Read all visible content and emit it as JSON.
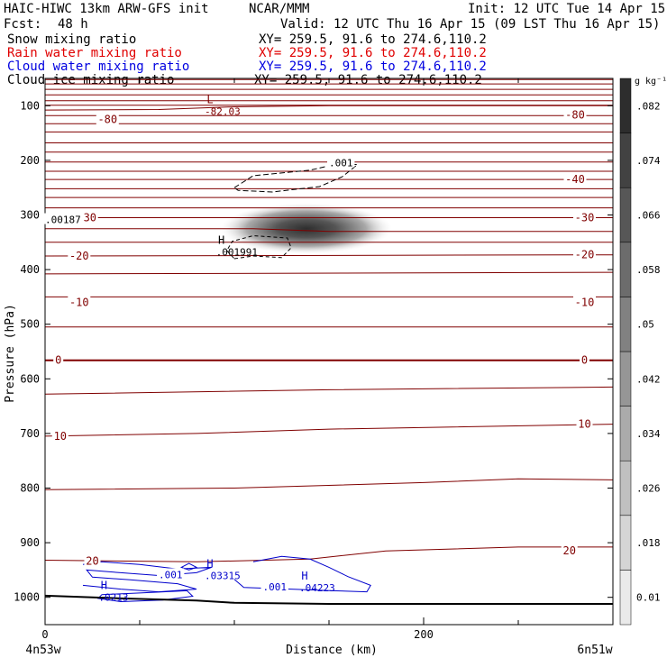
{
  "header": {
    "model": "HAIC-HIWC 13km ARW-GFS init",
    "org": "NCAR/MMM",
    "init": "Init: 12 UTC Tue 14 Apr 15",
    "fcst_label": "Fcst:",
    "fcst_value": "48 h",
    "valid": "Valid: 12 UTC Thu 16 Apr 15 (09 LST Thu 16 Apr 15)"
  },
  "fields": [
    {
      "name": "Snow mixing ratio",
      "xy": "XY= 259.5, 91.6 to 274.6,110.2",
      "color": "#000000"
    },
    {
      "name": "Rain water mixing ratio",
      "xy": "XY= 259.5, 91.6 to 274.6,110.2",
      "color": "#e00000"
    },
    {
      "name": "Cloud water mixing ratio",
      "xy": "XY= 259.5, 91.6 to 274.6,110.2",
      "color": "#0000e0"
    },
    {
      "name": "Cloud ice mixing ratio",
      "xy": "XY= 259.5, 91.6 to 274.6,110.2",
      "color": "#000000"
    }
  ],
  "colors": {
    "temperature": "#800000",
    "cloud_water": "#0000cc",
    "cloud_ice": "#000000",
    "ground": "#000000"
  },
  "chart_data": {
    "type": "cross-section",
    "xlabel": "Distance (km)",
    "ylabel": "Pressure (hPa)",
    "xlim": [
      0,
      300
    ],
    "x_ticks": [
      0,
      200
    ],
    "x_minor_ticks": [
      50,
      100,
      150,
      250
    ],
    "ylim": [
      1050,
      50
    ],
    "y_ticks": [
      100,
      200,
      300,
      400,
      500,
      600,
      700,
      800,
      900,
      1000
    ],
    "left_endpoint": "4n53w",
    "right_endpoint": "6n51w",
    "colorbar": {
      "unit": "g kg⁻¹",
      "ticks": [
        "0.01",
        ".018",
        ".026",
        ".034",
        ".042",
        ".05",
        ".058",
        ".066",
        ".074",
        ".082"
      ]
    },
    "temperature_contour_labels": [
      {
        "text": "-80",
        "x": 33,
        "p": 125
      },
      {
        "text": "-80",
        "x": 280,
        "p": 117
      },
      {
        "text": "-40",
        "x": 280,
        "p": 235
      },
      {
        "text": "-30",
        "x": 22,
        "p": 305
      },
      {
        "text": "-30",
        "x": 285,
        "p": 305
      },
      {
        "text": "-20",
        "x": 18,
        "p": 375
      },
      {
        "text": "-20",
        "x": 285,
        "p": 373
      },
      {
        "text": "-10",
        "x": 18,
        "p": 460
      },
      {
        "text": "-10",
        "x": 285,
        "p": 460
      },
      {
        "text": "0",
        "x": 7,
        "p": 566
      },
      {
        "text": "0",
        "x": 285,
        "p": 566
      },
      {
        "text": "10",
        "x": 8,
        "p": 705
      },
      {
        "text": "10",
        "x": 285,
        "p": 683
      },
      {
        "text": "20",
        "x": 25,
        "p": 934
      },
      {
        "text": "20",
        "x": 277,
        "p": 915
      }
    ],
    "extrema": [
      {
        "kind": "L",
        "value": "-82.03",
        "x": 90,
        "p": 110,
        "color": "temperature"
      },
      {
        "kind": "H",
        "value": ".001991",
        "x": 96,
        "p": 368,
        "color": "cloud_ice"
      },
      {
        "kind": "H",
        "value": ".03315",
        "x": 90,
        "p": 960,
        "color": "cloud_water"
      },
      {
        "kind": "H",
        "value": ".04223",
        "x": 140,
        "p": 982,
        "color": "cloud_water"
      },
      {
        "kind": "H",
        "value": ".0213",
        "x": 34,
        "p": 1000,
        "color": "cloud_water"
      }
    ],
    "contour_labels": [
      {
        "text": ".001",
        "x": 150,
        "p": 206,
        "color": "cloud_ice"
      },
      {
        "text": ".00187",
        "x": 0,
        "p": 310,
        "color": "cloud_ice"
      },
      {
        "text": ".001",
        "x": 60,
        "p": 960,
        "color": "cloud_water"
      },
      {
        "text": ".001",
        "x": 115,
        "p": 982,
        "color": "cloud_water"
      }
    ],
    "shaded_maximum": {
      "field": "Snow mixing ratio",
      "x_center": 138,
      "p_center": 325,
      "max": 0.082
    }
  }
}
